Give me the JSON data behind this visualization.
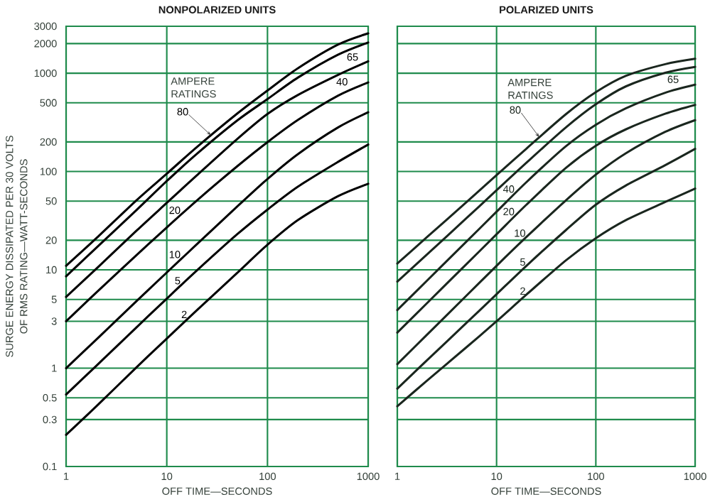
{
  "chart_data": [
    {
      "type": "line",
      "title": "NONPOLARIZED UNITS",
      "xlabel": "OFF TIME—SECONDS",
      "ylabel": "SURGE ENERGY DISSIPATED PER 30 VOLTS OF RMS RATING—WATT-SECONDS",
      "log": "xy",
      "xlim": [
        1,
        1000
      ],
      "xticks": [
        1,
        10,
        100,
        1000
      ],
      "ylim": [
        0.1,
        3000
      ],
      "yticks": [
        0.1,
        0.3,
        0.5,
        1,
        3,
        5,
        10,
        20,
        50,
        100,
        200,
        500,
        1000,
        2000,
        3000
      ],
      "grid": true,
      "line_style": "solid",
      "annotations": [
        "AMPERE RATINGS"
      ],
      "x": [
        1,
        2,
        5,
        10,
        20,
        50,
        100,
        200,
        500,
        1000
      ],
      "series": [
        {
          "name": "80",
          "color": "#000000",
          "values": [
            11,
            21,
            51,
            95,
            178,
            388,
            666,
            1120,
            1950,
            2540
          ]
        },
        {
          "name": "65",
          "color": "#000000",
          "values": [
            8.6,
            16.8,
            40.5,
            80,
            152,
            330,
            545,
            900,
            1540,
            2050
          ]
        },
        {
          "name": "40",
          "color": "#000000",
          "values": [
            5.3,
            10.3,
            25,
            48,
            92,
            214,
            385,
            600,
            960,
            1320
          ]
        },
        {
          "name": "20",
          "color": "#000000",
          "values": [
            3,
            5.9,
            14.1,
            27,
            51,
            113,
            199,
            334,
            590,
            805
          ]
        },
        {
          "name": "10",
          "color": "#000000",
          "values": [
            1,
            1.96,
            4.8,
            9.4,
            18.3,
            44,
            84,
            150,
            280,
            400
          ]
        },
        {
          "name": "5",
          "color": "#000000",
          "values": [
            0.54,
            1.06,
            2.6,
            5.1,
            9.9,
            23,
            41,
            70,
            125,
            188
          ]
        },
        {
          "name": "2",
          "color": "#000000",
          "values": [
            0.21,
            0.41,
            1.02,
            2,
            3.9,
            9.3,
            18,
            32,
            56,
            75
          ]
        }
      ]
    },
    {
      "type": "line",
      "title": "POLARIZED UNITS",
      "xlabel": "OFF TIME—SECONDS",
      "log": "xy",
      "xlim": [
        1,
        1000
      ],
      "xticks": [
        1,
        10,
        100,
        1000
      ],
      "ylim": [
        0.1,
        3000
      ],
      "yticks": [
        0.1,
        0.3,
        0.5,
        1,
        3,
        5,
        10,
        20,
        50,
        100,
        200,
        500,
        1000,
        2000,
        3000
      ],
      "tick_labels": "x",
      "grid": true,
      "line_style": "solid",
      "annotations": [
        "AMPERE RATINGS"
      ],
      "x": [
        1,
        2,
        5,
        10,
        20,
        50,
        100,
        200,
        500,
        1000
      ],
      "series": [
        {
          "name": "80",
          "color": "#1a261e",
          "values": [
            11.6,
            21.6,
            49,
            92,
            171,
            383,
            641,
            938,
            1235,
            1400
          ]
        },
        {
          "name": "65",
          "color": "#1a261e",
          "values": [
            7.6,
            14.4,
            33.7,
            64.5,
            123,
            281,
            483,
            733,
            1010,
            1160
          ]
        },
        {
          "name": "40",
          "color": "#1a261e",
          "values": [
            3.9,
            7.8,
            19.5,
            39,
            78,
            181,
            299,
            438,
            632,
            763
          ]
        },
        {
          "name": "20",
          "color": "#1a261e",
          "values": [
            2.3,
            4.6,
            11.5,
            23,
            46,
            109,
            183,
            268,
            387,
            476
          ]
        },
        {
          "name": "10",
          "color": "#1a261e",
          "values": [
            1.1,
            2.2,
            5.5,
            11,
            21.6,
            51,
            93,
            153,
            253,
            333
          ]
        },
        {
          "name": "5",
          "color": "#1a261e",
          "values": [
            0.62,
            1.21,
            2.9,
            5.65,
            11,
            25.4,
            46,
            72,
            116,
            170
          ]
        },
        {
          "name": "2",
          "color": "#1a261e",
          "values": [
            0.41,
            0.75,
            1.64,
            3,
            5.6,
            12.5,
            21,
            32,
            49,
            67
          ]
        }
      ]
    }
  ]
}
